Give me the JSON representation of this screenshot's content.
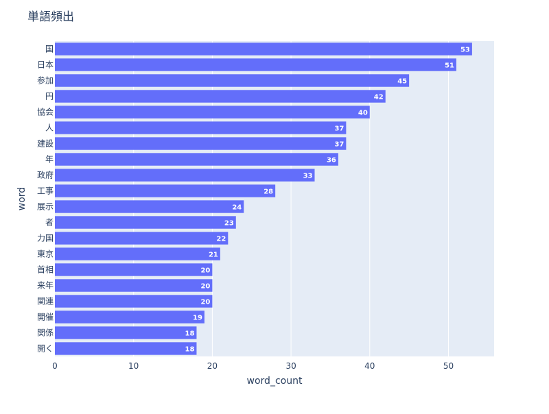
{
  "chart_data": {
    "type": "bar",
    "orientation": "horizontal",
    "title": "単語頻出",
    "xlabel": "word_count",
    "ylabel": "word",
    "categories": [
      "国",
      "日本",
      "参加",
      "円",
      "協会",
      "人",
      "建設",
      "年",
      "政府",
      "工事",
      "展示",
      "者",
      "力国",
      "東京",
      "首相",
      "来年",
      "関連",
      "開催",
      "関係",
      "開く"
    ],
    "values": [
      53,
      51,
      45,
      42,
      40,
      37,
      37,
      36,
      33,
      28,
      24,
      23,
      22,
      21,
      20,
      20,
      20,
      19,
      18,
      18
    ],
    "xlim": [
      0,
      55.8
    ],
    "x_ticks": [
      0,
      10,
      20,
      30,
      40,
      50
    ],
    "grid": true,
    "data_labels": "inside-end",
    "colors": {
      "bar": "#636efa",
      "plot_bg": "#e5ecf6",
      "grid": "#ffffff",
      "text": "#2a3f5f",
      "label": "#ffffff"
    }
  }
}
